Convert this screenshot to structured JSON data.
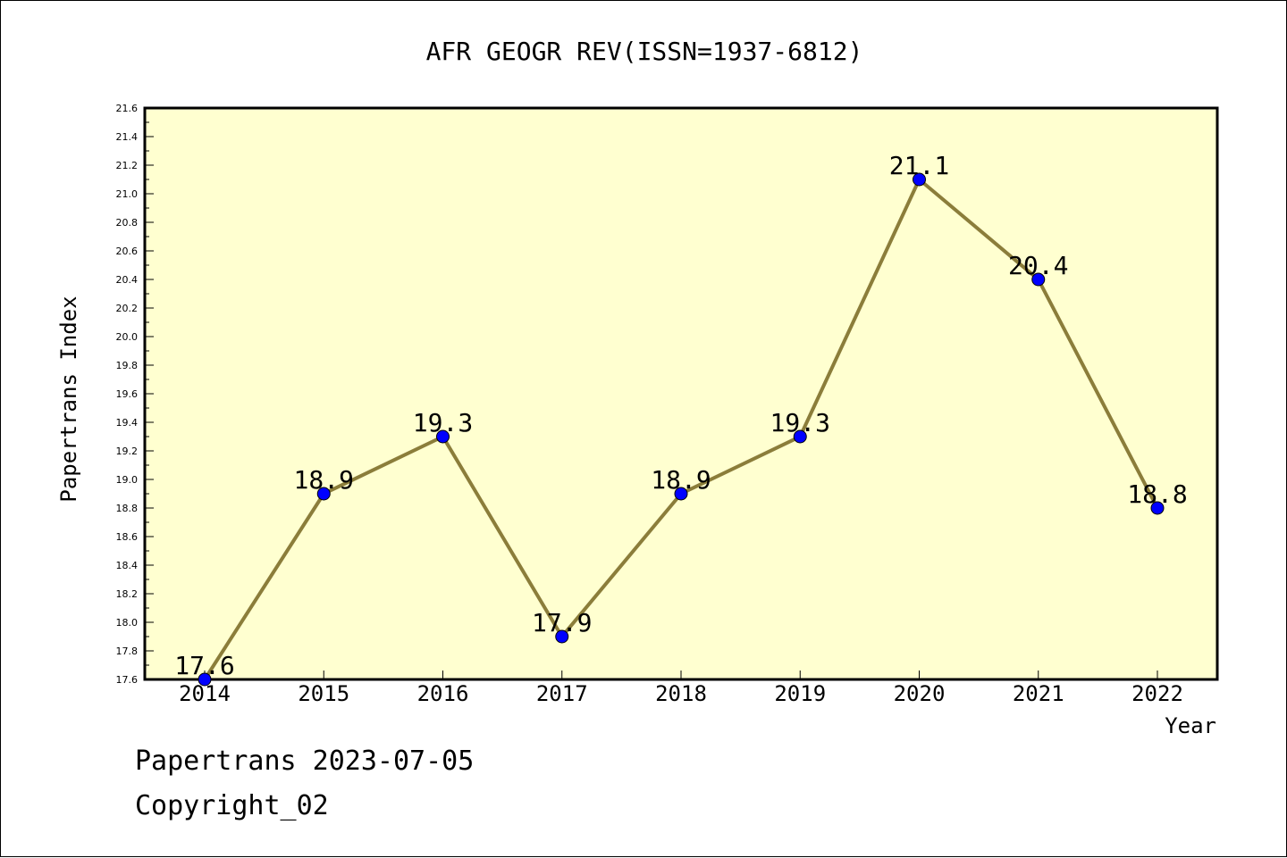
{
  "chart_data": {
    "type": "line",
    "title": "AFR GEOGR REV(ISSN=1937-6812)",
    "xlabel": "Year",
    "ylabel": "Papertrans Index",
    "x": [
      "2014",
      "2015",
      "2016",
      "2017",
      "2018",
      "2019",
      "2020",
      "2021",
      "2022"
    ],
    "series": [
      {
        "values": [
          17.6,
          18.9,
          19.3,
          17.9,
          18.9,
          19.3,
          21.1,
          20.4,
          18.8
        ]
      }
    ],
    "data_labels": [
      "17.6",
      "18.9",
      "19.3",
      "17.9",
      "18.9",
      "19.3",
      "21.1",
      "20.4",
      "18.8"
    ],
    "ylim": [
      17.6,
      21.6
    ],
    "yticks": [
      "17.6",
      "17.8",
      "18.0",
      "18.2",
      "18.4",
      "18.6",
      "18.8",
      "19.0",
      "19.2",
      "19.4",
      "19.6",
      "19.8",
      "20.0",
      "20.2",
      "20.4",
      "20.6",
      "20.8",
      "21.0",
      "21.2",
      "21.4",
      "21.6"
    ],
    "grid": false,
    "legend": "none",
    "colors": {
      "plot_background": "#ffffd0",
      "line": "#8b7d3a",
      "marker": "#0000ff",
      "axis": "#000000"
    }
  },
  "footer": {
    "line1": "Papertrans 2023-07-05",
    "line2": "Copyright_02"
  }
}
